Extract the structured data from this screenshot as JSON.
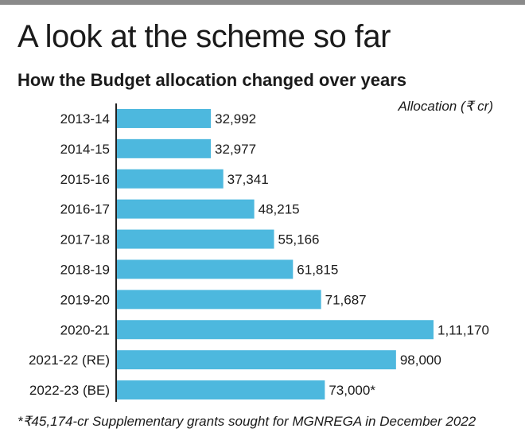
{
  "headline": "A look at the scheme so far",
  "chart_data": {
    "type": "bar",
    "orientation": "horizontal",
    "title": "How the Budget allocation changed over years",
    "unit_label": "Allocation (₹  cr)",
    "categories": [
      "2013-14",
      "2014-15",
      "2015-16",
      "2016-17",
      "2017-18",
      "2018-19",
      "2019-20",
      "2020-21",
      "2021-22 (RE)",
      "2022-23 (BE)"
    ],
    "values": [
      32992,
      32977,
      37341,
      48215,
      55166,
      61815,
      71687,
      111170,
      98000,
      73000
    ],
    "data_labels": [
      "32,992",
      "32,977",
      "37,341",
      "48,215",
      "55,166",
      "61,815",
      "71,687",
      "1,11,170",
      "98,000",
      "73,000*"
    ],
    "xlim": [
      0,
      111170
    ],
    "grid": false,
    "bar_color": "#4db8de"
  },
  "footnote": "*₹45,174-cr Supplementary grants sought for MGNREGA in December 2022"
}
